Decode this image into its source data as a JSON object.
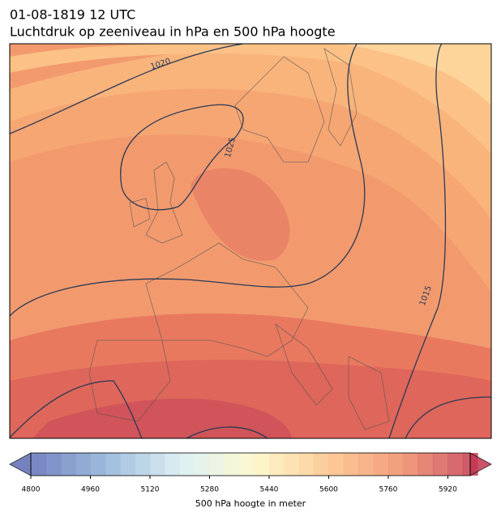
{
  "title": "01-08-1819 12 UTC",
  "subtitle": "Luchtdruk op zeeniveau in hPa en 500 hPa hoogte",
  "contour_labels": [
    "1020",
    "1025",
    "1015"
  ],
  "colorbar": {
    "label": "500 hPa hoogte in meter",
    "range": [
      4800,
      5980
    ],
    "step": 40,
    "ticks": [
      4800,
      4960,
      5120,
      5280,
      5440,
      5600,
      5760,
      5920
    ],
    "colors": [
      "#5e6db5",
      "#8cb0d6",
      "#d8ecf3",
      "#fdf8c8",
      "#fcc386",
      "#ef8a66",
      "#c2374f"
    ]
  }
}
